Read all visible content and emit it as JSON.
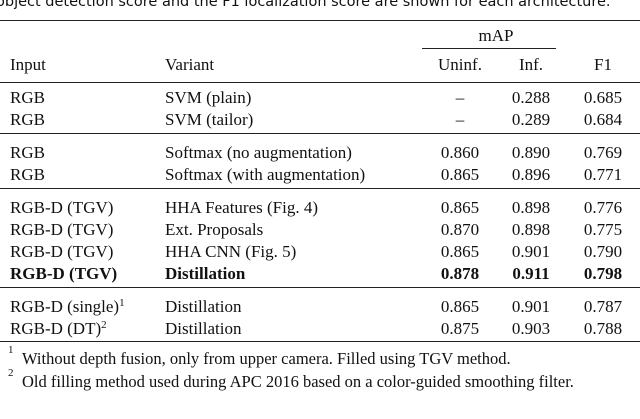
{
  "caption": "object detection score and the F1 localization score are shown for each architecture.",
  "table": {
    "group_header": "mAP",
    "columns": [
      "Input",
      "Variant",
      "Uninf.",
      "Inf.",
      "F1"
    ],
    "groups": [
      {
        "rows": [
          {
            "input": "RGB",
            "variant": "SVM (plain)",
            "uninf": "–",
            "inf": "0.288",
            "f1": "0.685"
          },
          {
            "input": "RGB",
            "variant": "SVM (tailor)",
            "uninf": "–",
            "inf": "0.289",
            "f1": "0.684"
          }
        ]
      },
      {
        "rows": [
          {
            "input": "RGB",
            "variant": "Softmax (no augmentation)",
            "uninf": "0.860",
            "inf": "0.890",
            "f1": "0.769"
          },
          {
            "input": "RGB",
            "variant": "Softmax (with augmentation)",
            "uninf": "0.865",
            "inf": "0.896",
            "f1": "0.771"
          }
        ]
      },
      {
        "rows": [
          {
            "input": "RGB-D (TGV)",
            "variant": "HHA Features (Fig. 4)",
            "uninf": "0.865",
            "inf": "0.898",
            "f1": "0.776"
          },
          {
            "input": "RGB-D (TGV)",
            "variant": "Ext. Proposals",
            "uninf": "0.870",
            "inf": "0.898",
            "f1": "0.775"
          },
          {
            "input": "RGB-D (TGV)",
            "variant": "HHA CNN (Fig. 5)",
            "uninf": "0.865",
            "inf": "0.901",
            "f1": "0.790"
          },
          {
            "input": "RGB-D (TGV)",
            "variant": "Distillation",
            "uninf": "0.878",
            "inf": "0.911",
            "f1": "0.798",
            "bold": true
          }
        ]
      },
      {
        "rows": [
          {
            "input": "RGB-D (single)",
            "input_note": "1",
            "variant": "Distillation",
            "uninf": "0.865",
            "inf": "0.901",
            "f1": "0.787"
          },
          {
            "input": "RGB-D (DT)",
            "input_note": "2",
            "variant": "Distillation",
            "uninf": "0.875",
            "inf": "0.903",
            "f1": "0.788"
          }
        ]
      }
    ]
  },
  "footnotes": [
    {
      "mark": "1",
      "text": "Without depth fusion, only from upper camera. Filled using TGV method."
    },
    {
      "mark": "2",
      "text": "Old filling method used during APC 2016 based on a color-guided smoothing filter."
    }
  ]
}
